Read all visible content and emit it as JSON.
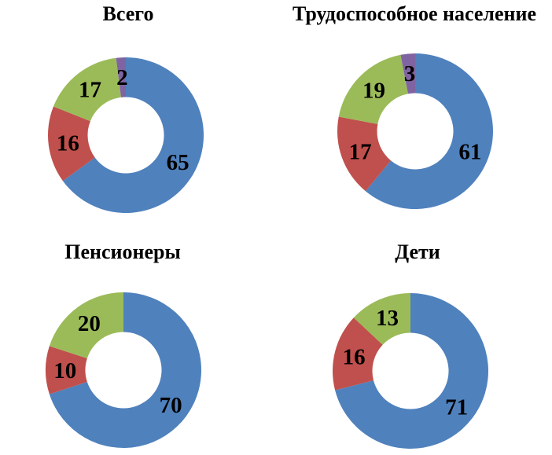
{
  "page": {
    "background": "#FFFFFF"
  },
  "palette": {
    "blue": "#4F81BD",
    "red": "#C0504D",
    "green": "#9BBB59",
    "purple": "#8064A2",
    "data_label_color": "#000000",
    "title_color": "#000000"
  },
  "chart_data": [
    {
      "type": "pie",
      "subtype": "donut",
      "title": "Всего",
      "values": [
        65,
        16,
        17,
        2
      ],
      "data_labels": [
        "65",
        "16",
        "17",
        "2"
      ],
      "slice_colors": [
        "#4F81BD",
        "#C0504D",
        "#9BBB59",
        "#8064A2"
      ],
      "start_angle_deg": 0,
      "direction": "clockwise",
      "hole_ratio": 0.49,
      "label_radius_ratio": 0.75,
      "legend": "none"
    },
    {
      "type": "pie",
      "subtype": "donut",
      "title": "Трудоспособное население",
      "values": [
        61,
        17,
        19,
        3
      ],
      "data_labels": [
        "61",
        "17",
        "19",
        "3"
      ],
      "slice_colors": [
        "#4F81BD",
        "#C0504D",
        "#9BBB59",
        "#8064A2"
      ],
      "start_angle_deg": 0,
      "direction": "clockwise",
      "hole_ratio": 0.49,
      "label_radius_ratio": 0.75,
      "legend": "none"
    },
    {
      "type": "pie",
      "subtype": "donut",
      "title": "Пенсионеры",
      "values": [
        70,
        10,
        20
      ],
      "data_labels": [
        "70",
        "10",
        "20"
      ],
      "slice_colors": [
        "#4F81BD",
        "#C0504D",
        "#9BBB59"
      ],
      "start_angle_deg": 0,
      "direction": "clockwise",
      "hole_ratio": 0.49,
      "label_radius_ratio": 0.75,
      "legend": "none"
    },
    {
      "type": "pie",
      "subtype": "donut",
      "title": "Дети",
      "values": [
        71,
        16,
        13
      ],
      "data_labels": [
        "71",
        "16",
        "13"
      ],
      "slice_colors": [
        "#4F81BD",
        "#C0504D",
        "#9BBB59"
      ],
      "start_angle_deg": 0,
      "direction": "clockwise",
      "hole_ratio": 0.49,
      "label_radius_ratio": 0.75,
      "legend": "none"
    }
  ]
}
